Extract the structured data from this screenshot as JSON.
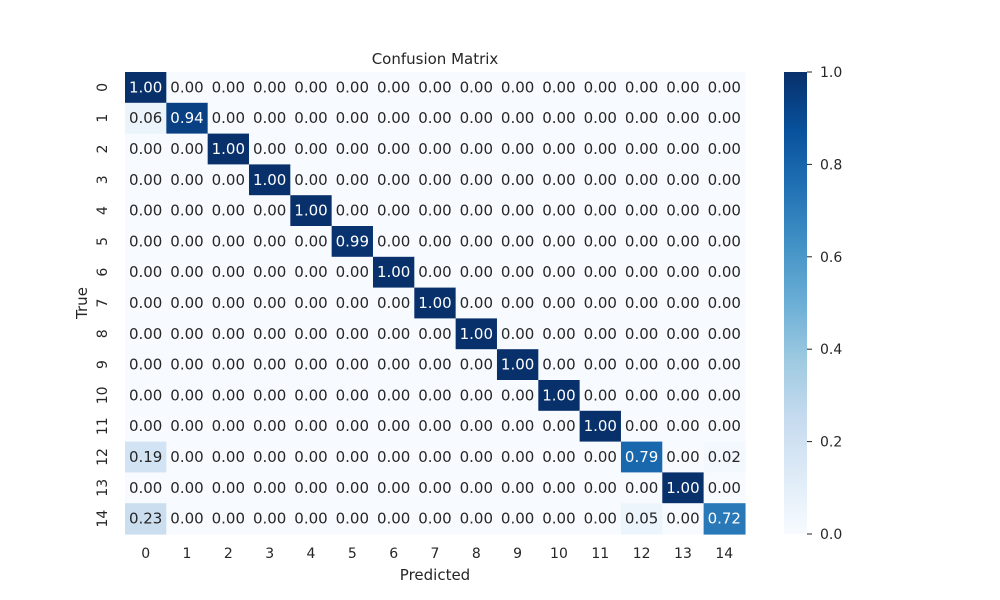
{
  "chart_data": {
    "type": "heatmap",
    "title": "Confusion Matrix",
    "xlabel": "Predicted",
    "ylabel": "True",
    "x_categories": [
      "0",
      "1",
      "2",
      "3",
      "4",
      "5",
      "6",
      "7",
      "8",
      "9",
      "10",
      "11",
      "12",
      "13",
      "14"
    ],
    "y_categories": [
      "0",
      "1",
      "2",
      "3",
      "4",
      "5",
      "6",
      "7",
      "8",
      "9",
      "10",
      "11",
      "12",
      "13",
      "14"
    ],
    "values": [
      [
        1.0,
        0.0,
        0.0,
        0.0,
        0.0,
        0.0,
        0.0,
        0.0,
        0.0,
        0.0,
        0.0,
        0.0,
        0.0,
        0.0,
        0.0
      ],
      [
        0.06,
        0.94,
        0.0,
        0.0,
        0.0,
        0.0,
        0.0,
        0.0,
        0.0,
        0.0,
        0.0,
        0.0,
        0.0,
        0.0,
        0.0
      ],
      [
        0.0,
        0.0,
        1.0,
        0.0,
        0.0,
        0.0,
        0.0,
        0.0,
        0.0,
        0.0,
        0.0,
        0.0,
        0.0,
        0.0,
        0.0
      ],
      [
        0.0,
        0.0,
        0.0,
        1.0,
        0.0,
        0.0,
        0.0,
        0.0,
        0.0,
        0.0,
        0.0,
        0.0,
        0.0,
        0.0,
        0.0
      ],
      [
        0.0,
        0.0,
        0.0,
        0.0,
        1.0,
        0.0,
        0.0,
        0.0,
        0.0,
        0.0,
        0.0,
        0.0,
        0.0,
        0.0,
        0.0
      ],
      [
        0.0,
        0.0,
        0.0,
        0.0,
        0.0,
        0.99,
        0.0,
        0.0,
        0.0,
        0.0,
        0.0,
        0.0,
        0.0,
        0.0,
        0.0
      ],
      [
        0.0,
        0.0,
        0.0,
        0.0,
        0.0,
        0.0,
        1.0,
        0.0,
        0.0,
        0.0,
        0.0,
        0.0,
        0.0,
        0.0,
        0.0
      ],
      [
        0.0,
        0.0,
        0.0,
        0.0,
        0.0,
        0.0,
        0.0,
        1.0,
        0.0,
        0.0,
        0.0,
        0.0,
        0.0,
        0.0,
        0.0
      ],
      [
        0.0,
        0.0,
        0.0,
        0.0,
        0.0,
        0.0,
        0.0,
        0.0,
        1.0,
        0.0,
        0.0,
        0.0,
        0.0,
        0.0,
        0.0
      ],
      [
        0.0,
        0.0,
        0.0,
        0.0,
        0.0,
        0.0,
        0.0,
        0.0,
        0.0,
        1.0,
        0.0,
        0.0,
        0.0,
        0.0,
        0.0
      ],
      [
        0.0,
        0.0,
        0.0,
        0.0,
        0.0,
        0.0,
        0.0,
        0.0,
        0.0,
        0.0,
        1.0,
        0.0,
        0.0,
        0.0,
        0.0
      ],
      [
        0.0,
        0.0,
        0.0,
        0.0,
        0.0,
        0.0,
        0.0,
        0.0,
        0.0,
        0.0,
        0.0,
        1.0,
        0.0,
        0.0,
        0.0
      ],
      [
        0.19,
        0.0,
        0.0,
        0.0,
        0.0,
        0.0,
        0.0,
        0.0,
        0.0,
        0.0,
        0.0,
        0.0,
        0.79,
        0.0,
        0.02
      ],
      [
        0.0,
        0.0,
        0.0,
        0.0,
        0.0,
        0.0,
        0.0,
        0.0,
        0.0,
        0.0,
        0.0,
        0.0,
        0.0,
        1.0,
        0.0
      ],
      [
        0.23,
        0.0,
        0.0,
        0.0,
        0.0,
        0.0,
        0.0,
        0.0,
        0.0,
        0.0,
        0.0,
        0.0,
        0.05,
        0.0,
        0.72
      ]
    ],
    "value_format": "2 decimals",
    "colormap": "Blues",
    "colorbar": {
      "range": [
        0.0,
        1.0
      ],
      "ticks": [
        "0.0",
        "0.2",
        "0.4",
        "0.6",
        "0.8",
        "1.0"
      ],
      "position": "right"
    },
    "grid": false,
    "legend": "none"
  }
}
